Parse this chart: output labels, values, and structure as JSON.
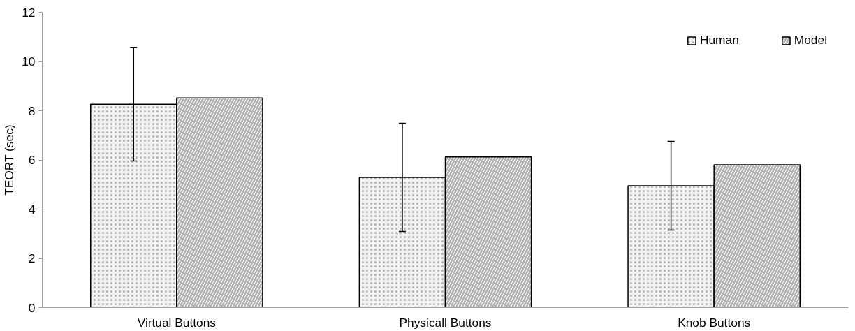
{
  "chart_data": {
    "type": "bar",
    "ylabel": "TEORT (sec)",
    "categories": [
      "Virtual Buttons",
      "Physicall Buttons",
      "Knob Buttons"
    ],
    "series": [
      {
        "name": "Human",
        "color": "#f2f2f2",
        "values": [
          8.26,
          5.29,
          4.95
        ],
        "errors": [
          2.3,
          2.2,
          1.8
        ]
      },
      {
        "name": "Model",
        "color": "#b3b3b3",
        "values": [
          8.52,
          6.12,
          5.8
        ]
      }
    ],
    "ylim": [
      0,
      12
    ],
    "yticks": [
      0,
      2,
      4,
      6,
      8,
      10,
      12
    ],
    "grid": false,
    "legend": "top right"
  }
}
